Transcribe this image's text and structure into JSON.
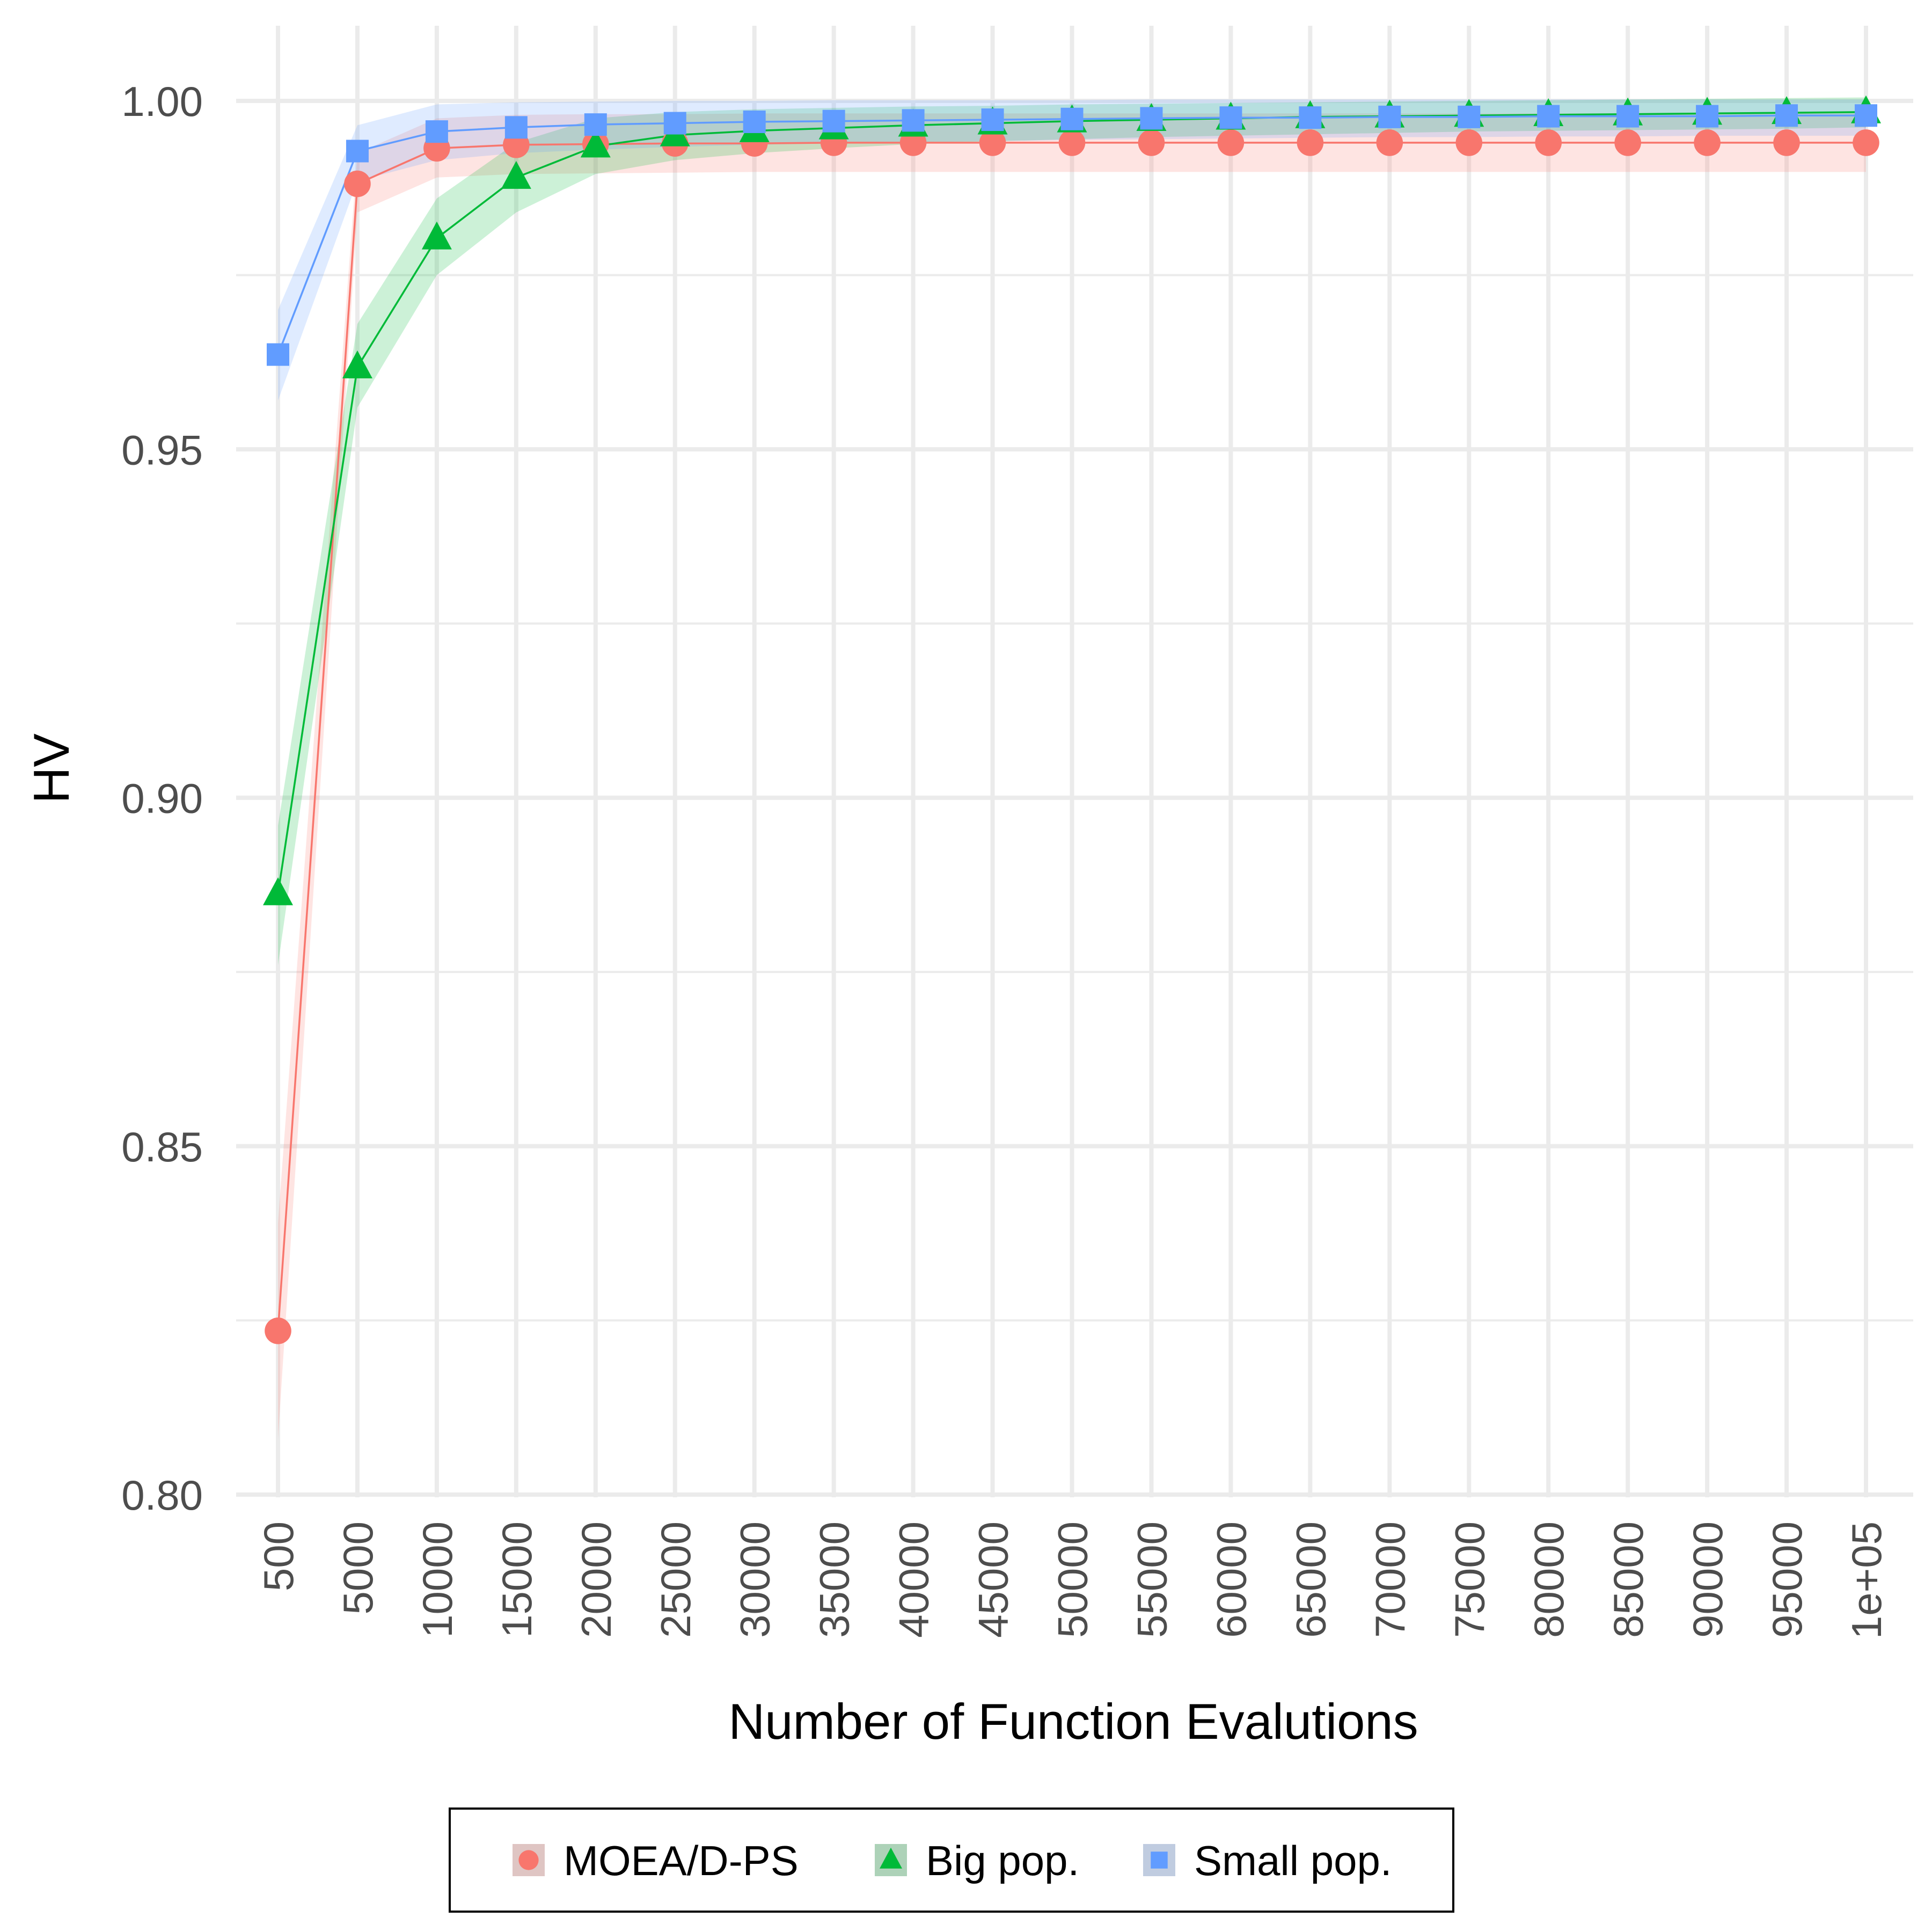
{
  "chart_data": {
    "type": "line",
    "title": "",
    "xlabel": "Number of Function Evalutions",
    "ylabel": "HV",
    "ylim": [
      0.8,
      1.0
    ],
    "yticks": [
      0.8,
      0.85,
      0.9,
      0.95,
      1.0
    ],
    "ytick_labels": [
      "0.80",
      "0.85",
      "0.90",
      "0.95",
      "1.00"
    ],
    "categories": [
      "500",
      "5000",
      "10000",
      "15000",
      "20000",
      "25000",
      "30000",
      "35000",
      "40000",
      "45000",
      "50000",
      "55000",
      "60000",
      "65000",
      "70000",
      "75000",
      "80000",
      "85000",
      "90000",
      "95000",
      "1e+05"
    ],
    "grid": true,
    "legend_position": "bottom",
    "series": [
      {
        "name": "MOEA/D-PS",
        "color": "#F8766D",
        "marker": "circle",
        "values": [
          0.8235,
          0.9881,
          0.9932,
          0.9937,
          0.9938,
          0.9939,
          0.9939,
          0.994,
          0.994,
          0.994,
          0.994,
          0.994,
          0.994,
          0.994,
          0.994,
          0.994,
          0.994,
          0.994,
          0.994,
          0.994,
          0.994
        ],
        "lower": [
          0.808,
          0.984,
          0.989,
          0.9895,
          0.9896,
          0.9897,
          0.9898,
          0.9898,
          0.9898,
          0.9898,
          0.9898,
          0.9898,
          0.9898,
          0.9898,
          0.9898,
          0.9898,
          0.9898,
          0.9898,
          0.9898,
          0.9898,
          0.9898
        ],
        "upper": [
          0.839,
          0.9925,
          0.9975,
          0.998,
          0.9981,
          0.9981,
          0.9982,
          0.9982,
          0.9982,
          0.9982,
          0.9982,
          0.9982,
          0.9982,
          0.9982,
          0.9982,
          0.9982,
          0.9982,
          0.9982,
          0.9982,
          0.9982,
          0.9982
        ]
      },
      {
        "name": "Big pop.",
        "color": "#00BA38",
        "marker": "triangle",
        "values": [
          0.8862,
          0.9618,
          0.9803,
          0.989,
          0.9935,
          0.9951,
          0.9957,
          0.9961,
          0.9965,
          0.9968,
          0.9971,
          0.9973,
          0.9975,
          0.9977,
          0.9978,
          0.9979,
          0.998,
          0.9981,
          0.9982,
          0.9983,
          0.9984
        ],
        "lower": [
          0.876,
          0.956,
          0.975,
          0.984,
          0.9895,
          0.9915,
          0.9925,
          0.9932,
          0.9938,
          0.9942,
          0.9945,
          0.9948,
          0.995,
          0.9952,
          0.9954,
          0.9956,
          0.9957,
          0.9958,
          0.9959,
          0.996,
          0.9962
        ],
        "upper": [
          0.896,
          0.968,
          0.986,
          0.994,
          0.9975,
          0.9984,
          0.9988,
          0.999,
          0.9992,
          0.9993,
          0.9995,
          0.9996,
          0.9997,
          0.9998,
          0.9999,
          1.0,
          1.0001,
          1.0002,
          1.0003,
          1.0004,
          1.0005
        ]
      },
      {
        "name": "Small pop.",
        "color": "#619CFF",
        "marker": "square",
        "values": [
          0.9636,
          0.9928,
          0.9956,
          0.9962,
          0.9966,
          0.9968,
          0.997,
          0.9971,
          0.9972,
          0.9973,
          0.9974,
          0.9975,
          0.9976,
          0.9976,
          0.9977,
          0.9977,
          0.9978,
          0.9978,
          0.9978,
          0.9979,
          0.9979
        ],
        "lower": [
          0.957,
          0.9885,
          0.9915,
          0.9925,
          0.993,
          0.9934,
          0.9937,
          0.9939,
          0.9941,
          0.9942,
          0.9944,
          0.9945,
          0.9946,
          0.9947,
          0.9948,
          0.9948,
          0.9949,
          0.9949,
          0.995,
          0.995,
          0.995
        ],
        "upper": [
          0.97,
          0.9965,
          0.9995,
          0.9998,
          0.9999,
          1.0,
          1.0,
          1.0001,
          1.0001,
          1.0001,
          1.0001,
          1.0002,
          1.0002,
          1.0002,
          1.0002,
          1.0002,
          1.0002,
          1.0002,
          1.0002,
          1.0002,
          1.0002
        ]
      }
    ]
  }
}
